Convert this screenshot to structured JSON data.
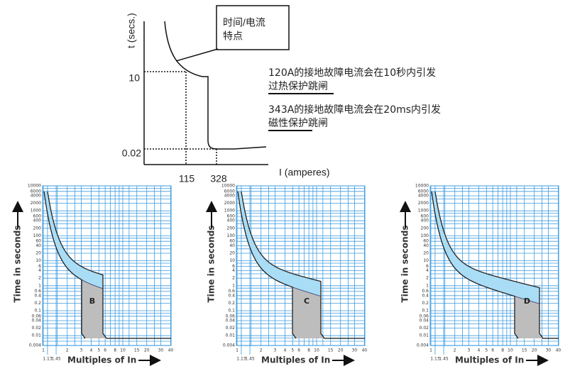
{
  "schematic": {
    "y_axis_label": "t (secs.)",
    "x_axis_label": "I (amperes)",
    "y_tick_labels": [
      "10",
      "0.02"
    ],
    "x_tick_labels": [
      "115",
      "328"
    ],
    "callout": [
      "时间/电流",
      "特点"
    ],
    "notes": [
      [
        "120A的接地故障电流会在10秒内引发",
        "过热保护跳闸"
      ],
      [
        "343A的接地故障电流会在20ms内引发",
        "磁性保护跳闸"
      ]
    ]
  },
  "trip_curves": {
    "y_axis_label": "Time in seconds",
    "x_axis_label": "Multiples of In",
    "y_tick_labels": [
      "10000",
      "6000",
      "4000",
      "2000",
      "1000",
      "600",
      "400",
      "200",
      "100",
      "60",
      "40",
      "20",
      "10",
      "6",
      "4",
      "2",
      "1",
      "0.6",
      "0.4",
      "0.2",
      "0.1",
      "0.06",
      "0.04",
      "0.02",
      "0.01",
      "0.004"
    ],
    "x_tick_labels": [
      "1",
      "1.13",
      "1.45",
      "2",
      "3",
      "4",
      "5",
      "6",
      "8",
      "10",
      "15",
      "20",
      "30",
      "40"
    ],
    "panels": [
      {
        "label": "B"
      },
      {
        "label": "C"
      },
      {
        "label": "D"
      }
    ]
  }
}
